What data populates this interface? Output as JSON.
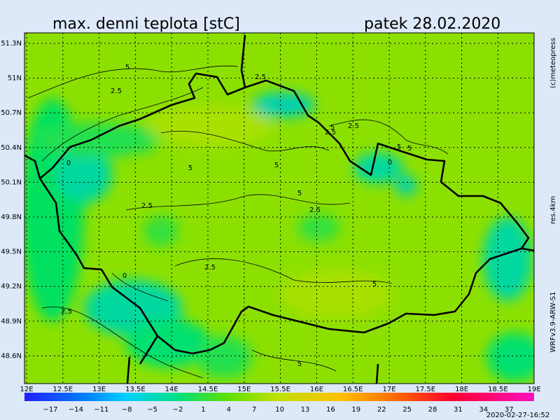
{
  "header": {
    "title": "max. denni teplota [stC]",
    "date": "patek 28.02.2020"
  },
  "lat_labels": [
    "51.3N",
    "51N",
    "50.7N",
    "50.4N",
    "50.1N",
    "49.8N",
    "49.5N",
    "49.2N",
    "48.9N",
    "48.6N"
  ],
  "lon_labels": [
    "12E",
    "12.5E",
    "13E",
    "13.5E",
    "14E",
    "14.5E",
    "15E",
    "15.5E",
    "16E",
    "16.5E",
    "17E",
    "17.5E",
    "18E",
    "18.5E",
    "19E"
  ],
  "colorbar_labels": [
    "−17",
    "−14",
    "−11",
    "−8",
    "−5",
    "−2",
    "1",
    "4",
    "7",
    "10",
    "13",
    "16",
    "19",
    "22",
    "25",
    "28",
    "31",
    "34",
    "37"
  ],
  "contour_labels": [
    "5",
    "2.5",
    "2.5",
    "2.5",
    "2.5",
    "5",
    "5",
    "5",
    "5",
    "2.5",
    "2.5",
    "5",
    "0",
    "0",
    "2.5",
    "2.5",
    "5",
    "5",
    "5",
    "0"
  ],
  "side": {
    "copyright": "(c)meteopress",
    "resolution": "res.4km",
    "model": "WRFv3.9-ARW-S1",
    "timestamp": "2020-02-27-16:52"
  }
}
